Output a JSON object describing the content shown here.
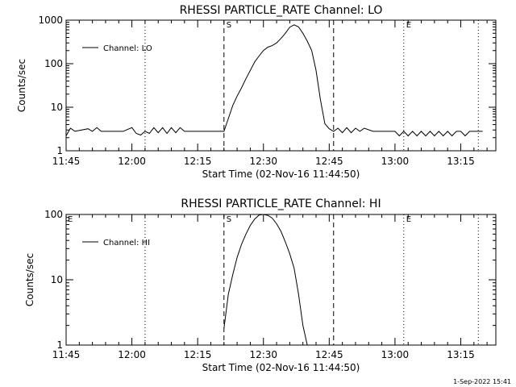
{
  "chart_data": [
    {
      "type": "line",
      "title": "RHESSI PARTICLE_RATE Channel: LO",
      "xlabel": "Start Time (02-Nov-16 11:44:50)",
      "ylabel": "Counts/sec",
      "y_scale": "log",
      "ylim": [
        1,
        1000
      ],
      "xlim_minutes_of_day": [
        705,
        803
      ],
      "xticks": [
        "11:45",
        "12:00",
        "12:15",
        "12:30",
        "12:45",
        "13:00",
        "13:15"
      ],
      "yticks": [
        "1",
        "10",
        "100",
        "1000"
      ],
      "legend": {
        "label": "Channel: LO",
        "position": "top-left"
      },
      "markers": [
        {
          "label": "S",
          "time": "12:21",
          "style": "dashed"
        },
        {
          "label": "",
          "time": "12:46",
          "style": "dashed"
        },
        {
          "label": "E",
          "time": "13:02",
          "style": "dotted"
        },
        {
          "label": "",
          "time": "12:03",
          "style": "dotted"
        },
        {
          "label": "",
          "time": "13:19",
          "style": "dotted"
        }
      ],
      "corner_mark": ".",
      "series": [
        {
          "name": "Channel: LO",
          "x": [
            "11:45",
            "11:46",
            "11:47",
            "11:50",
            "11:51",
            "11:52",
            "11:53",
            "11:55",
            "11:58",
            "12:00",
            "12:01",
            "12:02",
            "12:03",
            "12:04",
            "12:05",
            "12:06",
            "12:07",
            "12:08",
            "12:09",
            "12:10",
            "12:11",
            "12:12",
            "12:13",
            "12:14",
            "12:15",
            "12:17",
            "12:19",
            "12:21",
            "12:22",
            "12:23",
            "12:24",
            "12:25",
            "12:26",
            "12:27",
            "12:28",
            "12:29",
            "12:30",
            "12:31",
            "12:32",
            "12:33",
            "12:34",
            "12:35",
            "12:36",
            "12:37",
            "12:38",
            "12:39",
            "12:40",
            "12:41",
            "12:42",
            "12:43",
            "12:44",
            "12:45",
            "12:46",
            "12:47",
            "12:48",
            "12:49",
            "12:50",
            "12:51",
            "12:52",
            "12:53",
            "12:55",
            "12:57",
            "12:59",
            "13:00",
            "13:01",
            "13:02",
            "13:03",
            "13:04",
            "13:05",
            "13:06",
            "13:07",
            "13:08",
            "13:09",
            "13:10",
            "13:11",
            "13:12",
            "13:13",
            "13:14",
            "13:15",
            "13:16",
            "13:17",
            "13:18",
            "13:19",
            "13:20"
          ],
          "y": [
            2.2,
            3.3,
            2.8,
            3.2,
            2.8,
            3.4,
            2.8,
            2.8,
            2.8,
            3.4,
            2.5,
            2.3,
            2.8,
            2.5,
            3.4,
            2.6,
            3.4,
            2.5,
            3.4,
            2.6,
            3.4,
            2.8,
            2.8,
            2.8,
            2.8,
            2.8,
            2.8,
            2.8,
            5.5,
            11,
            18,
            28,
            45,
            70,
            110,
            150,
            200,
            240,
            260,
            300,
            380,
            500,
            690,
            780,
            700,
            500,
            330,
            200,
            70,
            15,
            4.2,
            3.2,
            2.8,
            3.3,
            2.6,
            3.4,
            2.6,
            3.3,
            2.8,
            3.3,
            2.8,
            2.8,
            2.8,
            2.8,
            2.2,
            2.8,
            2.2,
            2.8,
            2.2,
            2.8,
            2.2,
            2.8,
            2.2,
            2.8,
            2.2,
            2.8,
            2.2,
            2.8,
            2.8,
            2.2,
            2.8,
            2.8,
            2.8,
            2.8
          ]
        }
      ]
    },
    {
      "type": "line",
      "title": "RHESSI PARTICLE_RATE Channel: HI",
      "xlabel": "Start Time (02-Nov-16 11:44:50)",
      "ylabel": "Counts/sec",
      "y_scale": "log",
      "ylim": [
        1,
        100
      ],
      "xlim_minutes_of_day": [
        705,
        803
      ],
      "xticks": [
        "11:45",
        "12:00",
        "12:15",
        "12:30",
        "12:45",
        "13:00",
        "13:15"
      ],
      "yticks": [
        "1",
        "10",
        "100"
      ],
      "legend": {
        "label": "Channel: HI",
        "position": "top-left"
      },
      "markers": [
        {
          "label": "S",
          "time": "12:21",
          "style": "dashed"
        },
        {
          "label": "",
          "time": "12:46",
          "style": "dashed"
        },
        {
          "label": "E",
          "time": "13:02",
          "style": "dotted"
        },
        {
          "label": "",
          "time": "12:03",
          "style": "dotted"
        },
        {
          "label": "",
          "time": "13:19",
          "style": "dotted"
        }
      ],
      "corner_mark": "E",
      "series": [
        {
          "name": "Channel: HI",
          "x": [
            "12:21",
            "12:22",
            "12:23",
            "12:24",
            "12:25",
            "12:26",
            "12:27",
            "12:28",
            "12:29",
            "12:30",
            "12:31",
            "12:32",
            "12:33",
            "12:34",
            "12:35",
            "12:36",
            "12:37",
            "12:38",
            "12:39",
            "12:40"
          ],
          "y": [
            1.8,
            6,
            12,
            22,
            35,
            50,
            68,
            85,
            98,
            100,
            97,
            88,
            72,
            55,
            38,
            25,
            15,
            6,
            2,
            1
          ]
        }
      ]
    }
  ],
  "timestamp": "1-Sep-2022 15:41"
}
